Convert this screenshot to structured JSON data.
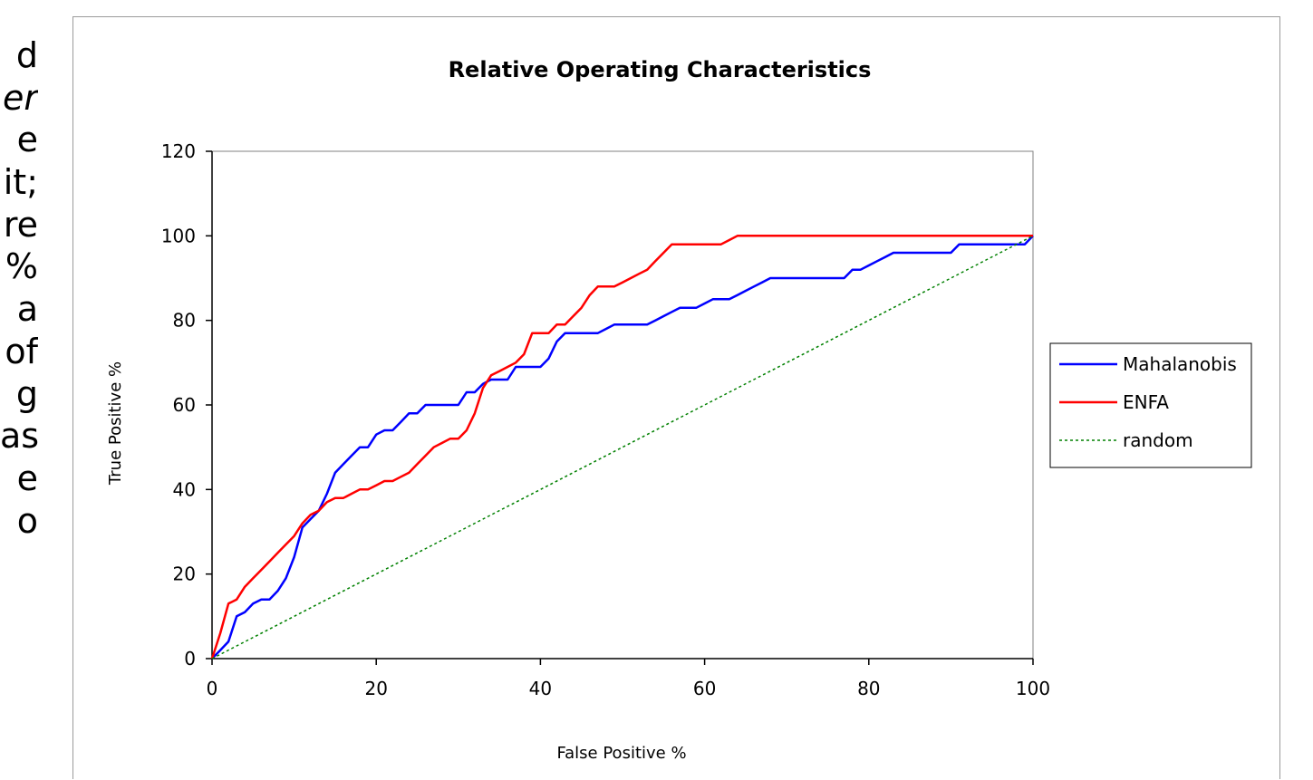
{
  "side_text": {
    "lines": [
      "d",
      "er",
      "e",
      "it;",
      "re",
      "%",
      "a",
      "of",
      "g",
      "as",
      "e",
      "o"
    ],
    "italic_lines": [
      1
    ]
  },
  "chart_data": {
    "type": "line",
    "title": "Relative Operating Characteristics",
    "xlabel": "False Positive %",
    "ylabel": "True Positive %",
    "xlim": [
      0,
      100
    ],
    "ylim": [
      0,
      120
    ],
    "xticks": [
      0,
      20,
      40,
      60,
      80,
      100
    ],
    "yticks": [
      0,
      20,
      40,
      60,
      80,
      100,
      120
    ],
    "grid": false,
    "legend_position": "right",
    "series": [
      {
        "name": "Mahalanobis",
        "color": "#0000ff",
        "style": "solid",
        "points": [
          [
            0,
            0
          ],
          [
            1,
            2
          ],
          [
            2,
            4
          ],
          [
            3,
            10
          ],
          [
            4,
            11
          ],
          [
            5,
            13
          ],
          [
            6,
            14
          ],
          [
            7,
            14
          ],
          [
            8,
            16
          ],
          [
            9,
            19
          ],
          [
            10,
            24
          ],
          [
            11,
            31
          ],
          [
            12,
            33
          ],
          [
            13,
            35
          ],
          [
            14,
            39
          ],
          [
            15,
            44
          ],
          [
            16,
            46
          ],
          [
            17,
            48
          ],
          [
            18,
            50
          ],
          [
            19,
            50
          ],
          [
            20,
            53
          ],
          [
            21,
            54
          ],
          [
            22,
            54
          ],
          [
            23,
            56
          ],
          [
            24,
            58
          ],
          [
            25,
            58
          ],
          [
            26,
            60
          ],
          [
            27,
            60
          ],
          [
            28,
            60
          ],
          [
            29,
            60
          ],
          [
            30,
            60
          ],
          [
            31,
            63
          ],
          [
            32,
            63
          ],
          [
            33,
            65
          ],
          [
            34,
            66
          ],
          [
            35,
            66
          ],
          [
            36,
            66
          ],
          [
            37,
            69
          ],
          [
            38,
            69
          ],
          [
            39,
            69
          ],
          [
            40,
            69
          ],
          [
            41,
            71
          ],
          [
            42,
            75
          ],
          [
            43,
            77
          ],
          [
            44,
            77
          ],
          [
            45,
            77
          ],
          [
            46,
            77
          ],
          [
            47,
            77
          ],
          [
            48,
            78
          ],
          [
            49,
            79
          ],
          [
            50,
            79
          ],
          [
            51,
            79
          ],
          [
            52,
            79
          ],
          [
            53,
            79
          ],
          [
            54,
            80
          ],
          [
            55,
            81
          ],
          [
            56,
            82
          ],
          [
            57,
            83
          ],
          [
            58,
            83
          ],
          [
            59,
            83
          ],
          [
            60,
            84
          ],
          [
            61,
            85
          ],
          [
            62,
            85
          ],
          [
            63,
            85
          ],
          [
            64,
            86
          ],
          [
            65,
            87
          ],
          [
            66,
            88
          ],
          [
            67,
            89
          ],
          [
            68,
            90
          ],
          [
            69,
            90
          ],
          [
            70,
            90
          ],
          [
            75,
            90
          ],
          [
            77,
            90
          ],
          [
            78,
            92
          ],
          [
            79,
            92
          ],
          [
            80,
            93
          ],
          [
            81,
            94
          ],
          [
            82,
            95
          ],
          [
            83,
            96
          ],
          [
            85,
            96
          ],
          [
            90,
            96
          ],
          [
            91,
            98
          ],
          [
            95,
            98
          ],
          [
            98,
            98
          ],
          [
            99,
            98
          ],
          [
            100,
            100
          ]
        ]
      },
      {
        "name": "ENFA",
        "color": "#ff0000",
        "style": "solid",
        "points": [
          [
            0,
            0
          ],
          [
            1,
            6
          ],
          [
            2,
            13
          ],
          [
            3,
            14
          ],
          [
            4,
            17
          ],
          [
            5,
            19
          ],
          [
            6,
            21
          ],
          [
            7,
            23
          ],
          [
            8,
            25
          ],
          [
            9,
            27
          ],
          [
            10,
            29
          ],
          [
            11,
            32
          ],
          [
            12,
            34
          ],
          [
            13,
            35
          ],
          [
            14,
            37
          ],
          [
            15,
            38
          ],
          [
            16,
            38
          ],
          [
            17,
            39
          ],
          [
            18,
            40
          ],
          [
            19,
            40
          ],
          [
            20,
            41
          ],
          [
            21,
            42
          ],
          [
            22,
            42
          ],
          [
            23,
            43
          ],
          [
            24,
            44
          ],
          [
            25,
            46
          ],
          [
            26,
            48
          ],
          [
            27,
            50
          ],
          [
            28,
            51
          ],
          [
            29,
            52
          ],
          [
            30,
            52
          ],
          [
            31,
            54
          ],
          [
            32,
            58
          ],
          [
            33,
            64
          ],
          [
            34,
            67
          ],
          [
            35,
            68
          ],
          [
            36,
            69
          ],
          [
            37,
            70
          ],
          [
            38,
            72
          ],
          [
            39,
            77
          ],
          [
            40,
            77
          ],
          [
            41,
            77
          ],
          [
            42,
            79
          ],
          [
            43,
            79
          ],
          [
            44,
            81
          ],
          [
            45,
            83
          ],
          [
            46,
            86
          ],
          [
            47,
            88
          ],
          [
            48,
            88
          ],
          [
            49,
            88
          ],
          [
            50,
            89
          ],
          [
            51,
            90
          ],
          [
            52,
            91
          ],
          [
            53,
            92
          ],
          [
            54,
            94
          ],
          [
            55,
            96
          ],
          [
            56,
            98
          ],
          [
            57,
            98
          ],
          [
            58,
            98
          ],
          [
            59,
            98
          ],
          [
            60,
            98
          ],
          [
            61,
            98
          ],
          [
            62,
            98
          ],
          [
            63,
            99
          ],
          [
            64,
            100
          ],
          [
            70,
            100
          ],
          [
            80,
            100
          ],
          [
            90,
            100
          ],
          [
            100,
            100
          ]
        ]
      },
      {
        "name": "random",
        "color": "#008000",
        "style": "dotted",
        "points": [
          [
            0,
            0
          ],
          [
            100,
            100
          ]
        ]
      }
    ]
  }
}
